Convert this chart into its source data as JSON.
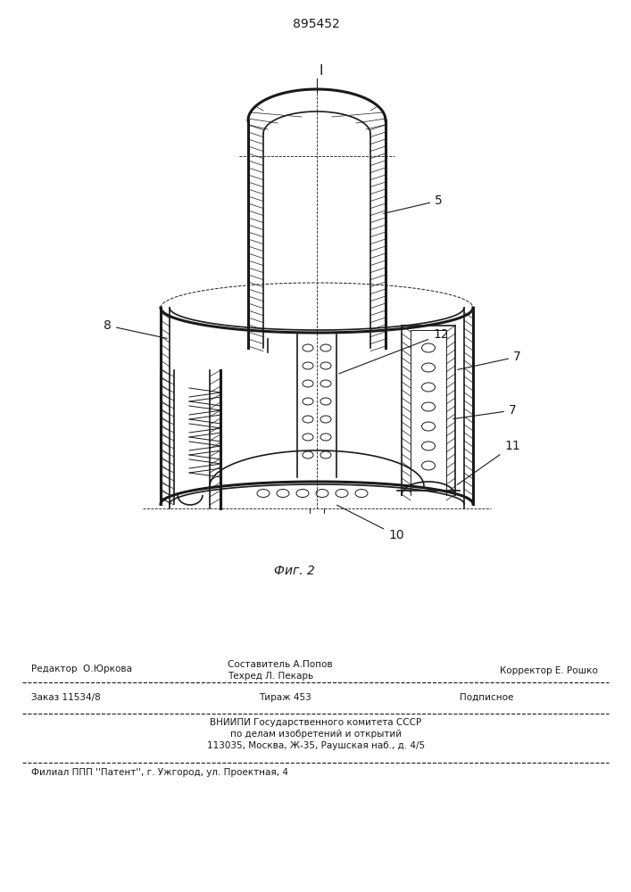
{
  "patent_number": "895452",
  "figure_caption": "Фиг. 2",
  "bg_color": "#ffffff",
  "line_color": "#1a1a1a",
  "footer_line1_col1": "Редактор  О.Юркова",
  "footer_line1_col2a": "Составитель А.Попов",
  "footer_line1_col2b": "Техред Л. Пекарь",
  "footer_line1_col3": "Корректор Е. Рошко",
  "footer_line2_col1": "Заказ 11534/8",
  "footer_line2_col2": "Тираж 453",
  "footer_line2_col3": "Подписное",
  "footer_line3": "ВНИИПИ Государственного комитета СССР",
  "footer_line4": "по делам изобретений и открытий",
  "footer_line5": "113035, Москва, Ж-35, Раушская наб., д. 4/5",
  "footer_line6": "Филиал ППП ''Патент'', г. Ужгород, ул. Проектная, 4"
}
